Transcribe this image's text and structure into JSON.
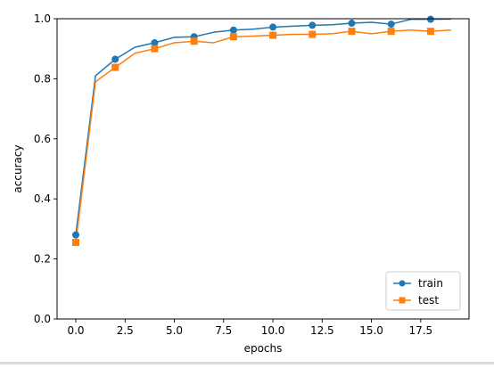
{
  "chart_data": {
    "type": "line",
    "title": "",
    "xlabel": "epochs",
    "ylabel": "accuracy",
    "xlim": [
      -0.95,
      19.95
    ],
    "ylim": [
      0,
      1.0
    ],
    "x_ticks": [
      0.0,
      2.5,
      5.0,
      7.5,
      10.0,
      12.5,
      15.0,
      17.5
    ],
    "x_tick_labels": [
      "0.0",
      "2.5",
      "5.0",
      "7.5",
      "10.0",
      "12.5",
      "15.0",
      "17.5"
    ],
    "y_ticks": [
      0.0,
      0.2,
      0.4,
      0.6,
      0.8,
      1.0
    ],
    "y_tick_labels": [
      "0.0",
      "0.2",
      "0.4",
      "0.6",
      "0.8",
      "1.0"
    ],
    "grid": false,
    "legend_position": "lower-right",
    "x": [
      0,
      1,
      2,
      3,
      4,
      5,
      6,
      7,
      8,
      9,
      10,
      11,
      12,
      13,
      14,
      15,
      16,
      17,
      18,
      19
    ],
    "series": [
      {
        "name": "train",
        "color": "#1f77b4",
        "marker": "circle",
        "marker_every": 2,
        "values": [
          0.28,
          0.81,
          0.865,
          0.905,
          0.92,
          0.938,
          0.94,
          0.955,
          0.962,
          0.965,
          0.972,
          0.975,
          0.978,
          0.98,
          0.985,
          0.988,
          0.982,
          0.998,
          0.998,
          0.999
        ]
      },
      {
        "name": "test",
        "color": "#ff7f0e",
        "marker": "square",
        "marker_every": 2,
        "values": [
          0.255,
          0.79,
          0.838,
          0.885,
          0.9,
          0.92,
          0.925,
          0.92,
          0.94,
          0.942,
          0.945,
          0.948,
          0.948,
          0.95,
          0.958,
          0.95,
          0.958,
          0.962,
          0.958,
          0.962
        ]
      }
    ]
  }
}
